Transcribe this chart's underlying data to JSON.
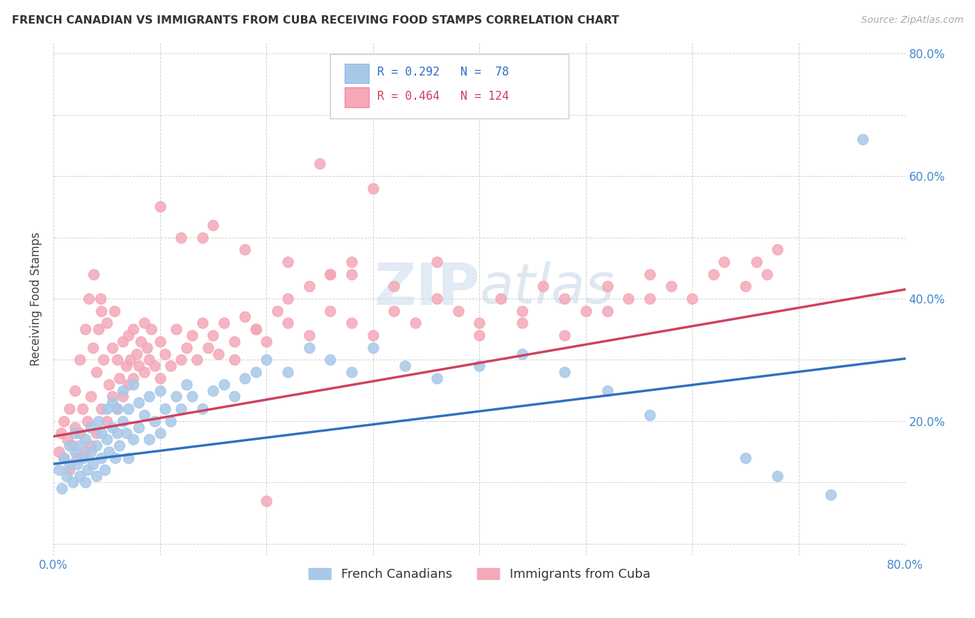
{
  "title": "FRENCH CANADIAN VS IMMIGRANTS FROM CUBA RECEIVING FOOD STAMPS CORRELATION CHART",
  "source": "Source: ZipAtlas.com",
  "ylabel": "Receiving Food Stamps",
  "xlim": [
    0.0,
    0.8
  ],
  "ylim": [
    -0.02,
    0.82
  ],
  "blue_color": "#A8C8E8",
  "blue_edge_color": "#A8C8E8",
  "pink_color": "#F4A8B8",
  "pink_edge_color": "#F4A8B8",
  "blue_line_color": "#3070C0",
  "pink_line_color": "#D04060",
  "blue_R": 0.292,
  "blue_N": 78,
  "pink_R": 0.464,
  "pink_N": 124,
  "legend_label_blue": "French Canadians",
  "legend_label_pink": "Immigrants from Cuba",
  "tick_color": "#4488CC",
  "blue_scatter_x": [
    0.005,
    0.008,
    0.01,
    0.012,
    0.015,
    0.015,
    0.018,
    0.02,
    0.02,
    0.022,
    0.025,
    0.025,
    0.028,
    0.03,
    0.03,
    0.032,
    0.035,
    0.035,
    0.037,
    0.04,
    0.04,
    0.042,
    0.045,
    0.045,
    0.048,
    0.05,
    0.05,
    0.052,
    0.055,
    0.055,
    0.058,
    0.06,
    0.06,
    0.062,
    0.065,
    0.065,
    0.068,
    0.07,
    0.07,
    0.075,
    0.075,
    0.08,
    0.08,
    0.085,
    0.09,
    0.09,
    0.095,
    0.1,
    0.1,
    0.105,
    0.11,
    0.115,
    0.12,
    0.125,
    0.13,
    0.14,
    0.15,
    0.16,
    0.17,
    0.18,
    0.19,
    0.2,
    0.22,
    0.24,
    0.26,
    0.28,
    0.3,
    0.33,
    0.36,
    0.4,
    0.44,
    0.48,
    0.52,
    0.56,
    0.65,
    0.68,
    0.73,
    0.76
  ],
  "blue_scatter_y": [
    0.12,
    0.09,
    0.14,
    0.11,
    0.13,
    0.16,
    0.1,
    0.15,
    0.18,
    0.13,
    0.11,
    0.16,
    0.14,
    0.1,
    0.17,
    0.12,
    0.15,
    0.19,
    0.13,
    0.16,
    0.11,
    0.2,
    0.14,
    0.18,
    0.12,
    0.17,
    0.22,
    0.15,
    0.19,
    0.23,
    0.14,
    0.18,
    0.22,
    0.16,
    0.2,
    0.25,
    0.18,
    0.14,
    0.22,
    0.17,
    0.26,
    0.19,
    0.23,
    0.21,
    0.17,
    0.24,
    0.2,
    0.18,
    0.25,
    0.22,
    0.2,
    0.24,
    0.22,
    0.26,
    0.24,
    0.22,
    0.25,
    0.26,
    0.24,
    0.27,
    0.28,
    0.3,
    0.28,
    0.32,
    0.3,
    0.28,
    0.32,
    0.29,
    0.27,
    0.29,
    0.31,
    0.28,
    0.25,
    0.21,
    0.14,
    0.11,
    0.08,
    0.66
  ],
  "pink_scatter_x": [
    0.005,
    0.007,
    0.01,
    0.01,
    0.013,
    0.015,
    0.015,
    0.018,
    0.02,
    0.02,
    0.022,
    0.025,
    0.025,
    0.027,
    0.03,
    0.03,
    0.032,
    0.033,
    0.035,
    0.035,
    0.037,
    0.038,
    0.04,
    0.04,
    0.042,
    0.044,
    0.045,
    0.045,
    0.047,
    0.05,
    0.05,
    0.052,
    0.055,
    0.055,
    0.057,
    0.06,
    0.06,
    0.062,
    0.065,
    0.065,
    0.068,
    0.07,
    0.07,
    0.072,
    0.075,
    0.075,
    0.078,
    0.08,
    0.082,
    0.085,
    0.085,
    0.088,
    0.09,
    0.092,
    0.095,
    0.1,
    0.1,
    0.105,
    0.11,
    0.115,
    0.12,
    0.125,
    0.13,
    0.135,
    0.14,
    0.145,
    0.15,
    0.155,
    0.16,
    0.17,
    0.18,
    0.19,
    0.2,
    0.21,
    0.22,
    0.24,
    0.26,
    0.28,
    0.3,
    0.32,
    0.34,
    0.36,
    0.38,
    0.4,
    0.42,
    0.44,
    0.46,
    0.48,
    0.5,
    0.52,
    0.54,
    0.56,
    0.58,
    0.6,
    0.62,
    0.63,
    0.65,
    0.66,
    0.67,
    0.68,
    0.28,
    0.32,
    0.36,
    0.25,
    0.3,
    0.14,
    0.18,
    0.2,
    0.22,
    0.26,
    0.4,
    0.44,
    0.48,
    0.52,
    0.56,
    0.1,
    0.12,
    0.15,
    0.17,
    0.19,
    0.22,
    0.24,
    0.26,
    0.28
  ],
  "pink_scatter_y": [
    0.15,
    0.18,
    0.14,
    0.2,
    0.17,
    0.12,
    0.22,
    0.16,
    0.19,
    0.25,
    0.14,
    0.18,
    0.3,
    0.22,
    0.15,
    0.35,
    0.2,
    0.4,
    0.16,
    0.24,
    0.32,
    0.44,
    0.18,
    0.28,
    0.35,
    0.4,
    0.22,
    0.38,
    0.3,
    0.2,
    0.36,
    0.26,
    0.24,
    0.32,
    0.38,
    0.22,
    0.3,
    0.27,
    0.24,
    0.33,
    0.29,
    0.26,
    0.34,
    0.3,
    0.27,
    0.35,
    0.31,
    0.29,
    0.33,
    0.28,
    0.36,
    0.32,
    0.3,
    0.35,
    0.29,
    0.27,
    0.33,
    0.31,
    0.29,
    0.35,
    0.3,
    0.32,
    0.34,
    0.3,
    0.36,
    0.32,
    0.34,
    0.31,
    0.36,
    0.33,
    0.37,
    0.35,
    0.33,
    0.38,
    0.36,
    0.34,
    0.38,
    0.36,
    0.34,
    0.38,
    0.36,
    0.4,
    0.38,
    0.36,
    0.4,
    0.38,
    0.42,
    0.4,
    0.38,
    0.42,
    0.4,
    0.44,
    0.42,
    0.4,
    0.44,
    0.46,
    0.42,
    0.46,
    0.44,
    0.48,
    0.44,
    0.42,
    0.46,
    0.62,
    0.58,
    0.5,
    0.48,
    0.07,
    0.46,
    0.44,
    0.34,
    0.36,
    0.34,
    0.38,
    0.4,
    0.55,
    0.5,
    0.52,
    0.3,
    0.35,
    0.4,
    0.42,
    0.44,
    0.46
  ]
}
